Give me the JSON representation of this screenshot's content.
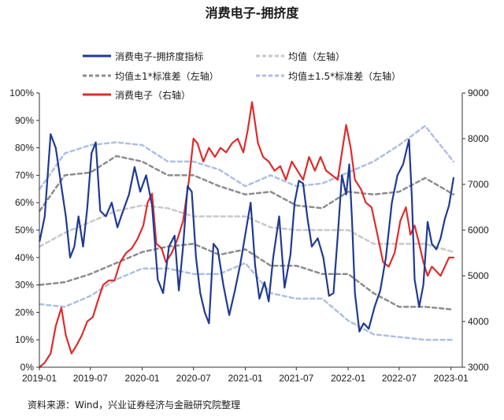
{
  "chart_data": {
    "type": "line",
    "title": "消费电子-拥挤度",
    "source": "资料来源：Wind，兴业证券经济与金融研究院整理",
    "x_ticks": [
      "2019-01",
      "2019-07",
      "2020-01",
      "2020-07",
      "2021-01",
      "2021-07",
      "2022-01",
      "2022-07",
      "2023-01"
    ],
    "y_left": {
      "range": [
        0,
        100
      ],
      "unit": "%",
      "ticks": [
        "0%",
        "10%",
        "20%",
        "30%",
        "40%",
        "50%",
        "60%",
        "70%",
        "80%",
        "90%",
        "100%"
      ]
    },
    "y_right": {
      "range": [
        3000,
        9000
      ],
      "ticks": [
        "3000",
        "4000",
        "5000",
        "6000",
        "7000",
        "8000",
        "9000"
      ]
    },
    "colors": {
      "index": "#1f3a93",
      "mean": "#c8c8c8",
      "band1": "#8c8c8c",
      "band15": "#aebfe0",
      "price": "#e02b2b"
    },
    "legend": [
      {
        "label": "消费电子-拥挤度指标",
        "style": "index"
      },
      {
        "label": "均值（左轴）",
        "style": "mean"
      },
      {
        "label": "均值±1*标准差（左轴）",
        "style": "band1"
      },
      {
        "label": "均值±1.5*标准差（左轴）",
        "style": "band15"
      },
      {
        "label": "消费电子（右轴）",
        "style": "price"
      }
    ],
    "series": [
      {
        "name": "消费电子-拥挤度指标",
        "axis": "left",
        "style": "index",
        "x": [
          "2019-01-02",
          "2019-01-20",
          "2019-02-10",
          "2019-02-28",
          "2019-03-20",
          "2019-04-05",
          "2019-04-20",
          "2019-05-05",
          "2019-05-20",
          "2019-06-05",
          "2019-06-20",
          "2019-07-05",
          "2019-07-20",
          "2019-08-05",
          "2019-08-25",
          "2019-09-15",
          "2019-10-05",
          "2019-10-25",
          "2019-11-15",
          "2019-12-05",
          "2019-12-25",
          "2020-01-15",
          "2020-02-05",
          "2020-02-25",
          "2020-03-15",
          "2020-04-05",
          "2020-04-25",
          "2020-05-10",
          "2020-05-25",
          "2020-06-10",
          "2020-06-25",
          "2020-07-10",
          "2020-07-25",
          "2020-08-10",
          "2020-08-25",
          "2020-09-10",
          "2020-09-25",
          "2020-10-15",
          "2020-11-05",
          "2020-11-25",
          "2020-12-15",
          "2021-01-05",
          "2021-01-20",
          "2021-02-05",
          "2021-02-20",
          "2021-03-10",
          "2021-03-25",
          "2021-04-10",
          "2021-05-01",
          "2021-05-20",
          "2021-06-10",
          "2021-06-25",
          "2021-07-10",
          "2021-07-25",
          "2021-08-10",
          "2021-08-25",
          "2021-09-15",
          "2021-10-05",
          "2021-10-25",
          "2021-11-10",
          "2021-11-25",
          "2021-12-10",
          "2021-12-25",
          "2022-01-05",
          "2022-01-15",
          "2022-01-25",
          "2022-02-10",
          "2022-02-25",
          "2022-03-15",
          "2022-04-05",
          "2022-04-25",
          "2022-05-15",
          "2022-06-05",
          "2022-06-25",
          "2022-07-15",
          "2022-08-05",
          "2022-08-15",
          "2022-08-25",
          "2022-09-10",
          "2022-09-25",
          "2022-10-10",
          "2022-10-25",
          "2022-11-10",
          "2022-11-25",
          "2022-12-10",
          "2022-12-25",
          "2023-01-10"
        ],
        "values": [
          46,
          55,
          85,
          80,
          66,
          55,
          40,
          44,
          55,
          44,
          58,
          78,
          82,
          57,
          55,
          60,
          51,
          57,
          63,
          73,
          64,
          70,
          59,
          32,
          27,
          44,
          48,
          28,
          44,
          66,
          64,
          40,
          27,
          20,
          16,
          45,
          43,
          30,
          19,
          28,
          38,
          51,
          60,
          37,
          25,
          31,
          24,
          40,
          55,
          29,
          41,
          60,
          68,
          67,
          54,
          44,
          47,
          40,
          26,
          27,
          48,
          70,
          63,
          74,
          53,
          27,
          13,
          16,
          14,
          22,
          28,
          40,
          60,
          70,
          74,
          83,
          62,
          32,
          22,
          30,
          53,
          45,
          43,
          47,
          54,
          59,
          69
        ]
      },
      {
        "name": "消费电子（右轴）",
        "axis": "right",
        "style": "price",
        "x": [
          "2019-01-02",
          "2019-01-20",
          "2019-02-10",
          "2019-02-28",
          "2019-03-20",
          "2019-04-05",
          "2019-04-25",
          "2019-05-15",
          "2019-06-01",
          "2019-06-20",
          "2019-07-10",
          "2019-07-25",
          "2019-08-15",
          "2019-09-05",
          "2019-09-25",
          "2019-10-15",
          "2019-11-05",
          "2019-11-25",
          "2019-12-15",
          "2020-01-05",
          "2020-01-20",
          "2020-02-05",
          "2020-02-20",
          "2020-03-10",
          "2020-03-25",
          "2020-04-15",
          "2020-05-05",
          "2020-05-25",
          "2020-06-15",
          "2020-07-01",
          "2020-07-15",
          "2020-08-05",
          "2020-08-25",
          "2020-09-15",
          "2020-10-05",
          "2020-10-25",
          "2020-11-15",
          "2020-12-05",
          "2020-12-25",
          "2021-01-10",
          "2021-01-25",
          "2021-02-15",
          "2021-03-05",
          "2021-03-25",
          "2021-04-15",
          "2021-05-05",
          "2021-05-25",
          "2021-06-15",
          "2021-07-05",
          "2021-07-25",
          "2021-08-15",
          "2021-09-05",
          "2021-09-25",
          "2021-10-15",
          "2021-11-05",
          "2021-11-25",
          "2021-12-10",
          "2021-12-25",
          "2022-01-10",
          "2022-01-25",
          "2022-02-15",
          "2022-03-05",
          "2022-03-25",
          "2022-04-15",
          "2022-05-05",
          "2022-05-25",
          "2022-06-15",
          "2022-07-05",
          "2022-07-25",
          "2022-08-10",
          "2022-08-25",
          "2022-09-10",
          "2022-09-25",
          "2022-10-10",
          "2022-10-25",
          "2022-11-10",
          "2022-11-25",
          "2022-12-10",
          "2022-12-25",
          "2023-01-10"
        ],
        "values": [
          3000,
          3100,
          3300,
          3900,
          4300,
          3700,
          3300,
          3500,
          3700,
          4000,
          4100,
          4400,
          4800,
          4900,
          4900,
          5300,
          5500,
          5600,
          5800,
          6100,
          6600,
          6800,
          5700,
          5600,
          5300,
          5500,
          5800,
          6200,
          7100,
          8000,
          7900,
          7500,
          7800,
          7600,
          7800,
          7700,
          7900,
          8000,
          7700,
          8200,
          8800,
          7900,
          7600,
          7500,
          7300,
          7400,
          7100,
          7500,
          7300,
          7100,
          7600,
          7300,
          7600,
          7300,
          7200,
          7100,
          7700,
          8300,
          7800,
          7100,
          6900,
          6600,
          6500,
          5900,
          5300,
          5200,
          5500,
          6200,
          6500,
          5900,
          6100,
          5700,
          5300,
          5000,
          5200,
          5100,
          5000,
          5200,
          5400,
          5400
        ]
      },
      {
        "name": "均值（左轴）",
        "axis": "left",
        "style": "mean",
        "x": [
          "2019-01-02",
          "2019-04-01",
          "2019-07-01",
          "2019-10-01",
          "2020-01-01",
          "2020-04-01",
          "2020-07-01",
          "2020-10-01",
          "2021-01-01",
          "2021-04-01",
          "2021-07-01",
          "2021-10-01",
          "2022-01-01",
          "2022-04-01",
          "2022-07-01",
          "2022-10-01",
          "2023-01-10"
        ],
        "values": [
          44,
          49,
          53,
          57,
          59,
          58,
          55,
          55,
          55,
          51,
          50,
          50,
          50,
          45,
          45,
          45,
          42
        ]
      },
      {
        "name": "均值+1*标准差",
        "axis": "left",
        "style": "band1",
        "x": [
          "2019-01-02",
          "2019-04-01",
          "2019-07-01",
          "2019-10-01",
          "2020-01-01",
          "2020-04-01",
          "2020-07-01",
          "2020-10-01",
          "2021-01-01",
          "2021-04-01",
          "2021-07-01",
          "2021-10-01",
          "2022-01-01",
          "2022-04-01",
          "2022-07-01",
          "2022-10-01",
          "2023-01-10"
        ],
        "values": [
          57,
          70,
          71,
          77,
          75,
          70,
          70,
          66,
          63,
          64,
          59,
          58,
          64,
          63,
          64,
          69,
          63
        ]
      },
      {
        "name": "均值-1*标准差",
        "axis": "left",
        "style": "band1",
        "x": [
          "2019-01-02",
          "2019-04-01",
          "2019-07-01",
          "2019-10-01",
          "2020-01-01",
          "2020-04-01",
          "2020-07-01",
          "2020-10-01",
          "2021-01-01",
          "2021-04-01",
          "2021-07-01",
          "2021-10-01",
          "2022-01-01",
          "2022-04-01",
          "2022-07-01",
          "2022-10-01",
          "2023-01-10"
        ],
        "values": [
          30,
          31,
          34,
          38,
          42,
          44,
          45,
          41,
          43,
          37,
          37,
          34,
          34,
          27,
          22,
          22,
          21
        ]
      },
      {
        "name": "均值+1.5*标准差",
        "axis": "left",
        "style": "band15",
        "x": [
          "2019-01-02",
          "2019-04-01",
          "2019-07-01",
          "2019-10-01",
          "2020-01-01",
          "2020-04-01",
          "2020-07-01",
          "2020-10-01",
          "2021-01-01",
          "2021-04-01",
          "2021-07-01",
          "2021-10-01",
          "2022-01-01",
          "2022-04-01",
          "2022-07-01",
          "2022-10-01",
          "2023-01-10"
        ],
        "values": [
          65,
          78,
          81,
          82,
          81,
          75,
          75,
          72,
          66,
          70,
          66,
          67,
          71,
          75,
          81,
          88,
          75
        ]
      },
      {
        "name": "均值-1.5*标准差",
        "axis": "left",
        "style": "band15",
        "x": [
          "2019-01-02",
          "2019-04-01",
          "2019-07-01",
          "2019-10-01",
          "2020-01-01",
          "2020-04-01",
          "2020-07-01",
          "2020-10-01",
          "2021-01-01",
          "2021-04-01",
          "2021-07-01",
          "2021-10-01",
          "2022-01-01",
          "2022-04-01",
          "2022-07-01",
          "2022-10-01",
          "2023-01-10"
        ],
        "values": [
          23,
          22,
          26,
          32,
          36,
          36,
          34,
          34,
          38,
          27,
          25,
          25,
          17,
          12,
          11,
          10,
          10
        ]
      }
    ]
  }
}
